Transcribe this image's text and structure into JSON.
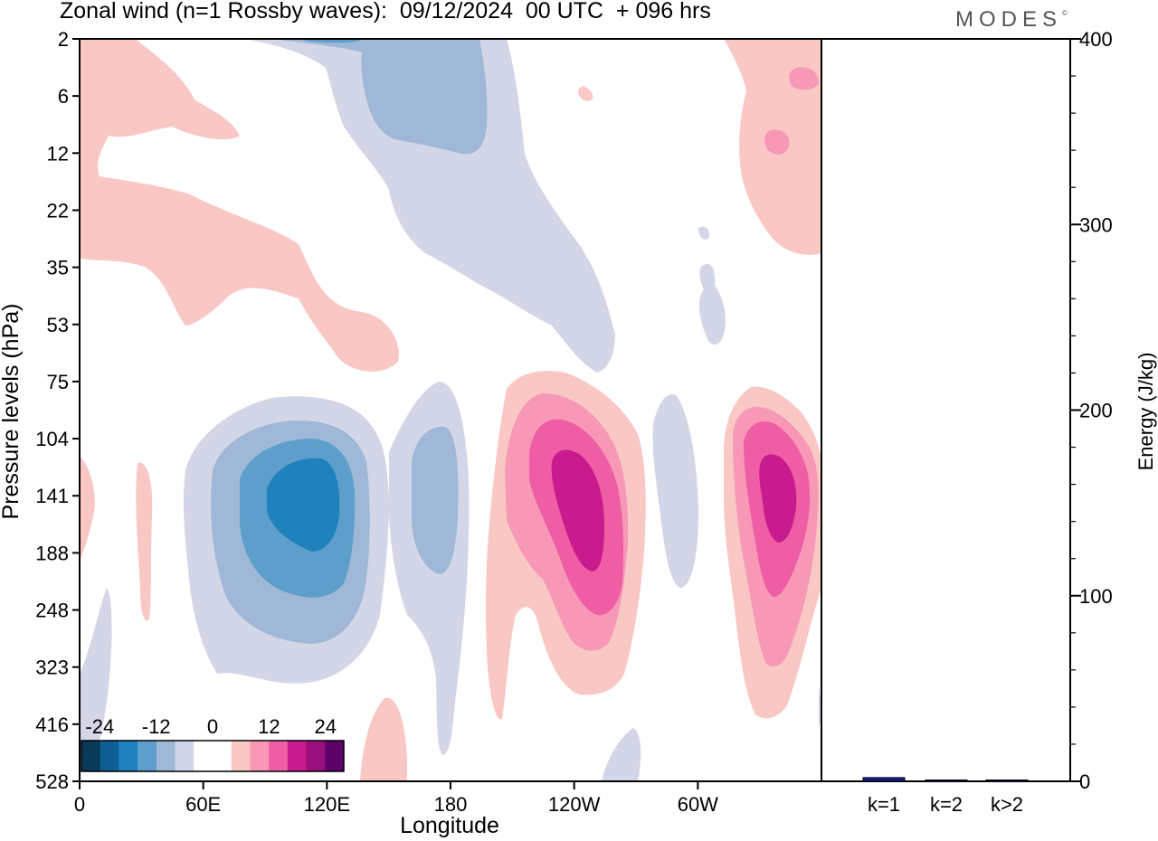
{
  "chart_data": [
    {
      "type": "heatmap",
      "title": "Zonal wind (n=1 Rossby waves):  09/12/2024  00 UTC  + 096 hrs",
      "xlabel": "Longitude",
      "ylabel": "Pressure levels (hPa)",
      "x_ticks": [
        "0",
        "60E",
        "120E",
        "180",
        "120W",
        "60W"
      ],
      "y_ticks": [
        "2",
        "6",
        "12",
        "22",
        "35",
        "53",
        "75",
        "104",
        "141",
        "188",
        "248",
        "323",
        "416",
        "528"
      ],
      "colorbar": {
        "tick_labels": [
          "-24",
          "-12",
          "0",
          "12",
          "24"
        ],
        "colors": [
          "#0a3a5a",
          "#0f5e93",
          "#1f82bd",
          "#5d9fca",
          "#9fb8d8",
          "#d3d6e7",
          "#ffffff",
          "#ffffff",
          "#f9c7c4",
          "#f698b6",
          "#ef5ea5",
          "#c81b8d",
          "#9a0f7e",
          "#5d0068"
        ]
      },
      "features": [
        {
          "sign": "negative",
          "center_lon": "~107E",
          "center_level_hPa": 141,
          "peak": -16
        },
        {
          "sign": "negative",
          "center_lon": "~172E",
          "center_level_hPa": 141,
          "peak": -8
        },
        {
          "sign": "positive",
          "center_lon": "~125W",
          "center_level_hPa": 141,
          "peak": 20
        },
        {
          "sign": "positive",
          "center_lon": "~35W",
          "center_level_hPa": 141,
          "peak": 20
        },
        {
          "sign": "negative",
          "center_lon": "~140E",
          "center_level_hPa": 6,
          "peak": -12
        },
        {
          "sign": "positive",
          "center_lon": "~30E",
          "center_level_hPa": 22,
          "peak": 4
        }
      ]
    },
    {
      "type": "bar",
      "categories": [
        "k=1",
        "k=2",
        "k>2"
      ],
      "values": [
        2,
        0.5,
        0.3
      ],
      "ylabel": "Energy (J/kg)",
      "y_ticks": [
        "0",
        "100",
        "200",
        "300",
        "400"
      ],
      "ylim": [
        0,
        400
      ]
    }
  ],
  "logo_text": "MODES"
}
